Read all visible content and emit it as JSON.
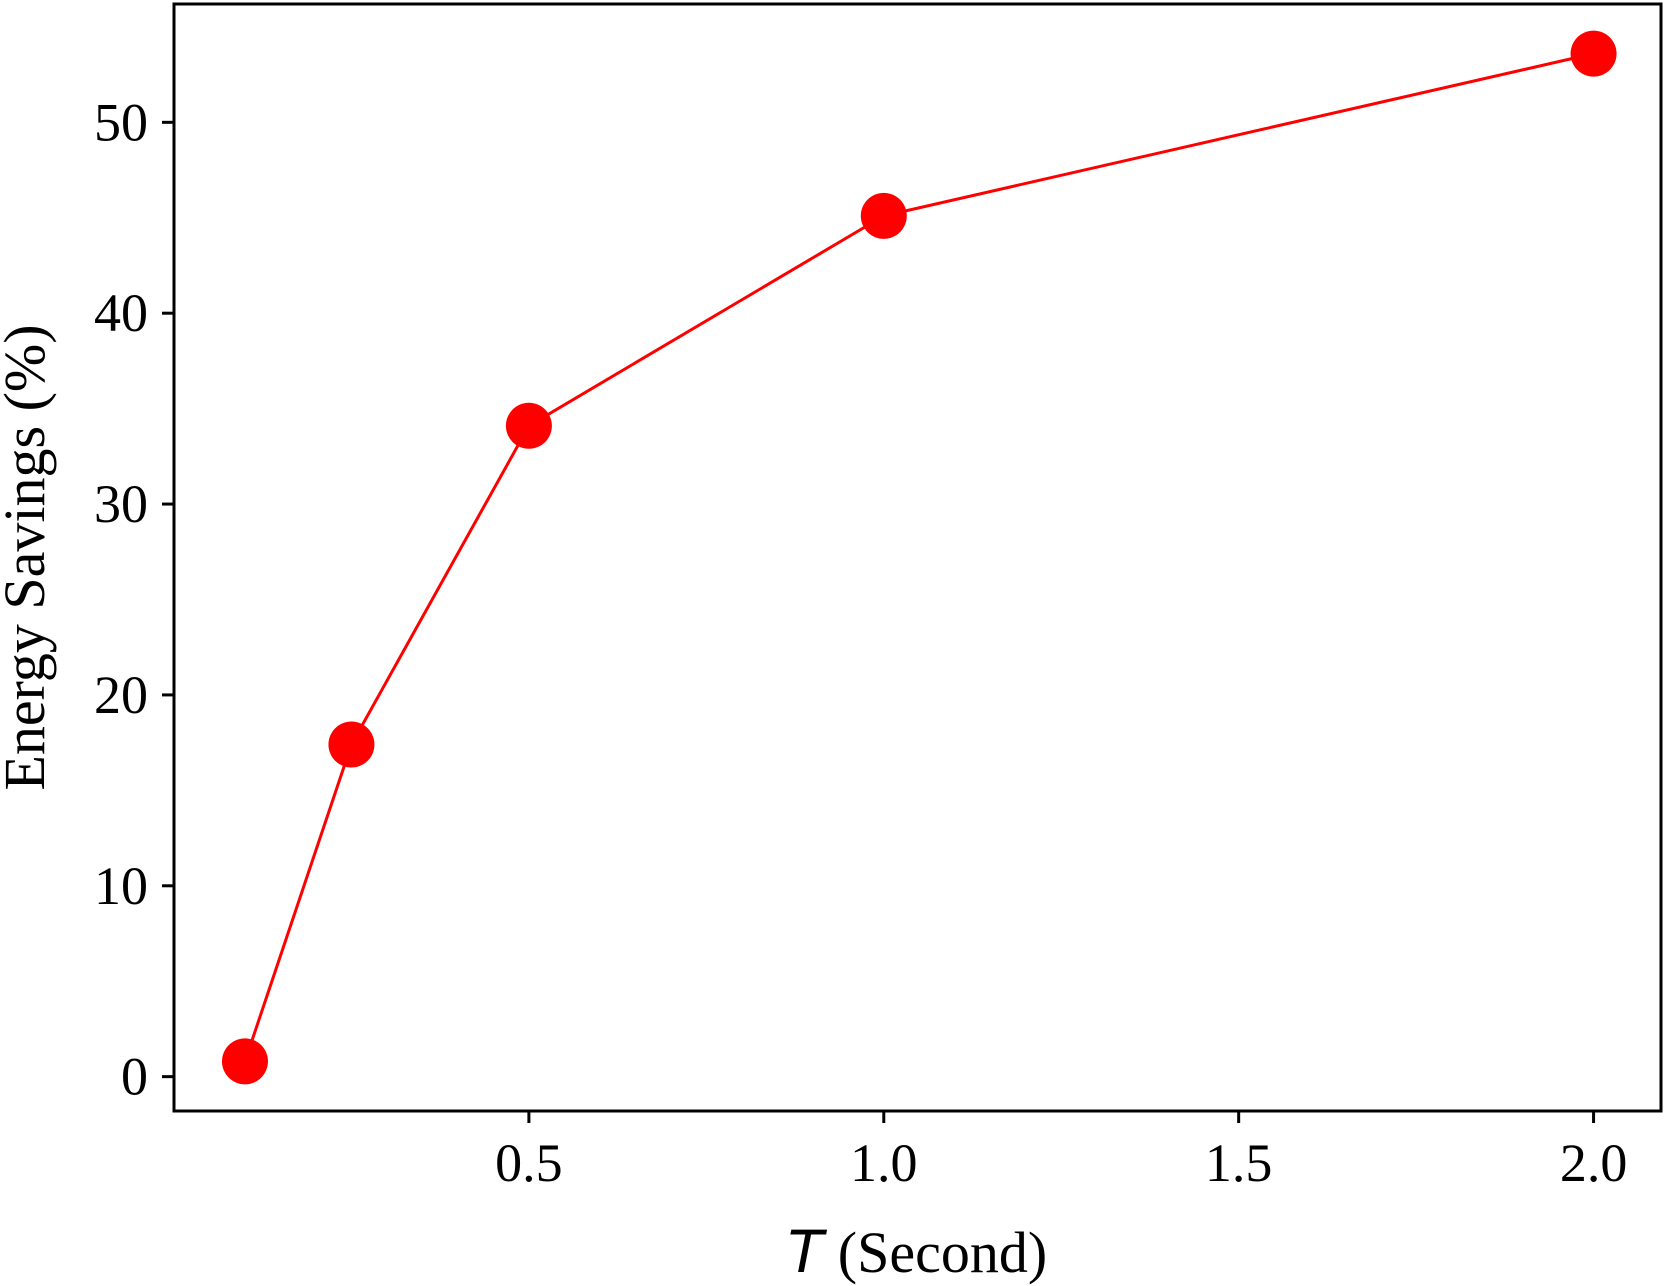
{
  "chart_data": {
    "type": "line",
    "title": "",
    "xlabel_var": "T",
    "xlabel_unit": " (Second)",
    "ylabel": "Energy Savings (%)",
    "x": [
      0.1,
      0.25,
      0.5,
      1.0,
      2.0
    ],
    "series": [
      {
        "values": [
          0.8,
          17.4,
          34.1,
          45.1,
          53.6
        ],
        "color": "#ff0000"
      }
    ],
    "xlim": [
      0.0,
      2.095
    ],
    "ylim": [
      -1.8,
      56.2
    ],
    "xticks": [
      0.5,
      1.0,
      1.5,
      2.0
    ],
    "xtick_labels": [
      "0.5",
      "1.0",
      "1.5",
      "2.0"
    ],
    "yticks": [
      0,
      10,
      20,
      30,
      40,
      50
    ],
    "ytick_labels": [
      "0",
      "10",
      "20",
      "30",
      "40",
      "50"
    ],
    "grid": false,
    "legend": "none"
  }
}
